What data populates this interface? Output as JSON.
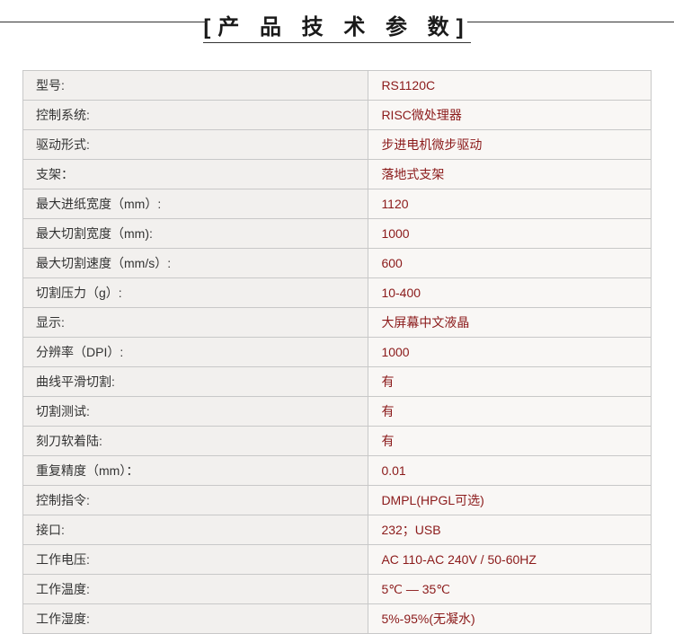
{
  "title": "[产 品 技 术 参 数]",
  "table": {
    "rows": [
      {
        "label": "型号:",
        "value": "RS1120C"
      },
      {
        "label": "控制系统:",
        "value": "RISC微处理器"
      },
      {
        "label": "驱动形式:",
        "value": "步进电机微步驱动"
      },
      {
        "label": "支架：",
        "value": "落地式支架"
      },
      {
        "label": "最大进纸宽度（mm）:",
        "value": "1120"
      },
      {
        "label": "最大切割宽度（mm):",
        "value": "1000"
      },
      {
        "label": "最大切割速度（mm/s）:",
        "value": "600"
      },
      {
        "label": "切割压力（g）:",
        "value": "10-400"
      },
      {
        "label": "显示:",
        "value": "大屏幕中文液晶"
      },
      {
        "label": "分辨率（DPI）:",
        "value": "1000"
      },
      {
        "label": "曲线平滑切割:",
        "value": "有"
      },
      {
        "label": "切割测试:",
        "value": "有"
      },
      {
        "label": "刻刀软着陆:",
        "value": "有"
      },
      {
        "label": "重复精度（mm）：",
        "value": "0.01"
      },
      {
        "label": "控制指令:",
        "value": "DMPL(HPGL可选)"
      },
      {
        "label": "接口:",
        "value": "232；USB"
      },
      {
        "label": "工作电压:",
        "value": "AC 110-AC  240V /  50-60HZ"
      },
      {
        "label": "工作温度:",
        "value": "5℃ — 35℃"
      },
      {
        "label": "工作湿度:",
        "value": "5%-95%(无凝水)"
      }
    ]
  },
  "colors": {
    "label_bg": "#f2f0ee",
    "value_bg": "#f9f7f5",
    "border": "#c8c8c8",
    "value_text": "#8b1a1a",
    "label_text": "#333333"
  }
}
